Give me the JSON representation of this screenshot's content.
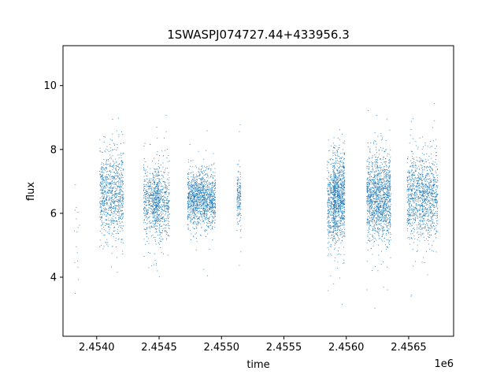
{
  "chart_data": {
    "type": "scatter",
    "title": "1SWASPJ074727.44+433956.3",
    "xlabel": "time",
    "ylabel": "flux",
    "x_offset_label": "1e6",
    "xlim": [
      2.45373,
      2.45686
    ],
    "ylim": [
      2.15,
      11.25
    ],
    "grid": false,
    "legend": "none",
    "x_ticks": [
      2.454,
      2.4545,
      2.455,
      2.4555,
      2.456,
      2.4565
    ],
    "x_tick_labels": [
      "2.4540",
      "2.4545",
      "2.4550",
      "2.4555",
      "2.4560",
      "2.4565"
    ],
    "y_ticks": [
      4,
      6,
      8,
      10
    ],
    "y_tick_labels": [
      "4",
      "6",
      "8",
      "10"
    ],
    "series_color": "#1f77b4",
    "clusters": [
      {
        "x_center": 2.45384,
        "x_spread": 1.5e-05,
        "y_center": 5.6,
        "y_spread": 1.4,
        "n": 16
      },
      {
        "x_center": 2.45412,
        "x_spread": 6e-05,
        "y_center": 6.6,
        "y_spread": 0.9,
        "n": 900
      },
      {
        "x_center": 2.45444,
        "x_spread": 4e-05,
        "y_center": 6.4,
        "y_spread": 0.7,
        "n": 500
      },
      {
        "x_center": 2.45452,
        "x_spread": 4e-05,
        "y_center": 6.3,
        "y_spread": 0.8,
        "n": 500
      },
      {
        "x_center": 2.45484,
        "x_spread": 7e-05,
        "y_center": 6.45,
        "y_spread": 0.55,
        "n": 1300
      },
      {
        "x_center": 2.45514,
        "x_spread": 1e-05,
        "y_center": 6.5,
        "y_spread": 0.55,
        "n": 160
      },
      {
        "x_center": 2.45588,
        "x_spread": 2e-05,
        "y_center": 6.4,
        "y_spread": 0.9,
        "n": 350
      },
      {
        "x_center": 2.45594,
        "x_spread": 3e-05,
        "y_center": 6.5,
        "y_spread": 0.9,
        "n": 900
      },
      {
        "x_center": 2.45626,
        "x_spread": 6e-05,
        "y_center": 6.5,
        "y_spread": 0.85,
        "n": 1400
      },
      {
        "x_center": 2.45655,
        "x_spread": 4e-05,
        "y_center": 6.5,
        "y_spread": 0.85,
        "n": 600
      },
      {
        "x_center": 2.45667,
        "x_spread": 4e-05,
        "y_center": 6.5,
        "y_spread": 0.85,
        "n": 600
      }
    ]
  }
}
